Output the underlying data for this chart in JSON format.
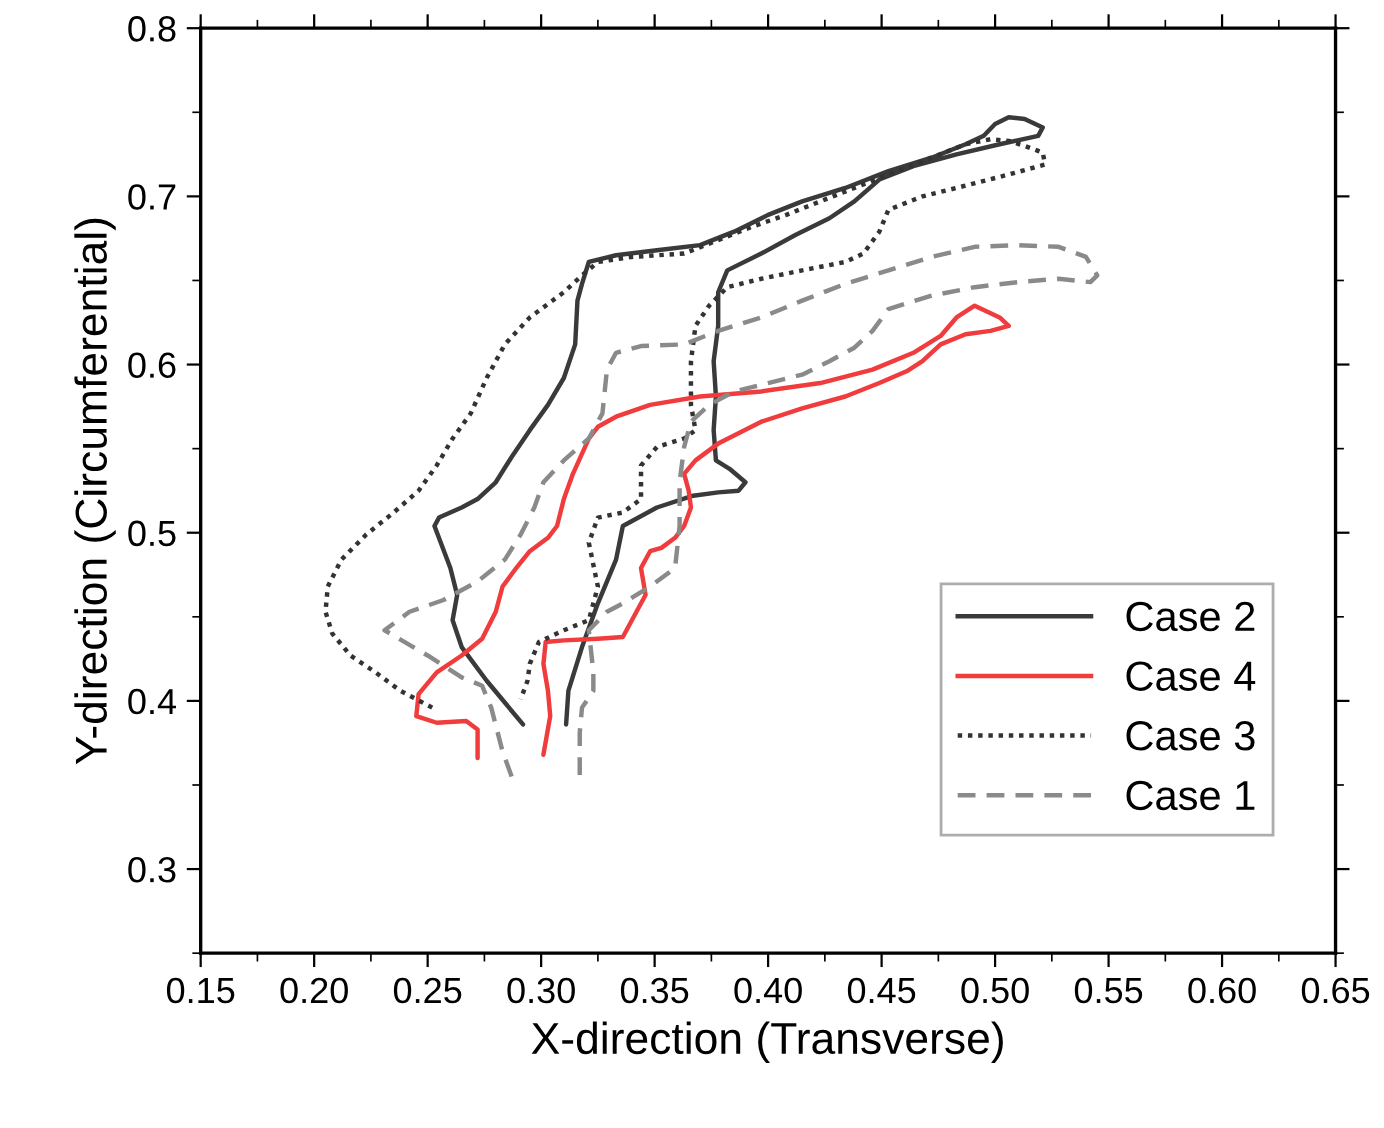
{
  "chart_data": {
    "type": "line",
    "xlabel": "X-direction (Transverse)",
    "ylabel": "Y-direction (Circumferential)",
    "xlim": [
      0.15,
      0.65
    ],
    "xticks": [
      {
        "value": 0.15,
        "label": "0.15"
      },
      {
        "value": 0.2,
        "label": "0.20"
      },
      {
        "value": 0.25,
        "label": "0.25"
      },
      {
        "value": 0.3,
        "label": "0.30"
      },
      {
        "value": 0.35,
        "label": "0.35"
      },
      {
        "value": 0.4,
        "label": "0.40"
      },
      {
        "value": 0.45,
        "label": "0.45"
      },
      {
        "value": 0.5,
        "label": "0.50"
      },
      {
        "value": 0.55,
        "label": "0.55"
      },
      {
        "value": 0.6,
        "label": "0.60"
      },
      {
        "value": 0.65,
        "label": "0.65"
      }
    ],
    "ylim": [
      0.25,
      0.8
    ],
    "yticks": [
      0.3,
      0.4,
      0.5,
      0.6,
      0.7,
      0.8
    ],
    "grid": false,
    "legend": "bottom right",
    "marker": "none",
    "series": [
      {
        "name": "Case 2",
        "color": "#3a3a3a",
        "line_style": "solid",
        "x": [
          0.292,
          0.276,
          0.265,
          0.261,
          0.263,
          0.26,
          0.253,
          0.255,
          0.265,
          0.272,
          0.28,
          0.287,
          0.295,
          0.303,
          0.31,
          0.315,
          0.316,
          0.318,
          0.321,
          0.333,
          0.351,
          0.37,
          0.385,
          0.4,
          0.415,
          0.434,
          0.453,
          0.472,
          0.487,
          0.495,
          0.5,
          0.506,
          0.513,
          0.521,
          0.519,
          0.502,
          0.483,
          0.464,
          0.449,
          0.438,
          0.427,
          0.412,
          0.397,
          0.382,
          0.378,
          0.378,
          0.376,
          0.377,
          0.376,
          0.377,
          0.383,
          0.39,
          0.387,
          0.378,
          0.367,
          0.351,
          0.336,
          0.333,
          0.325,
          0.318,
          0.312,
          0.311
        ],
        "values": [
          0.386,
          0.412,
          0.432,
          0.448,
          0.463,
          0.479,
          0.504,
          0.509,
          0.515,
          0.52,
          0.53,
          0.545,
          0.561,
          0.576,
          0.592,
          0.612,
          0.638,
          0.648,
          0.661,
          0.665,
          0.668,
          0.671,
          0.679,
          0.689,
          0.697,
          0.705,
          0.715,
          0.723,
          0.731,
          0.736,
          0.743,
          0.747,
          0.746,
          0.741,
          0.736,
          0.731,
          0.725,
          0.718,
          0.71,
          0.697,
          0.687,
          0.677,
          0.666,
          0.656,
          0.643,
          0.623,
          0.602,
          0.581,
          0.561,
          0.543,
          0.538,
          0.53,
          0.525,
          0.524,
          0.522,
          0.515,
          0.504,
          0.484,
          0.458,
          0.432,
          0.406,
          0.386
        ]
      },
      {
        "name": "Case 4",
        "color": "#f03c3c",
        "line_style": "solid",
        "x": [
          0.272,
          0.272,
          0.267,
          0.254,
          0.245,
          0.246,
          0.254,
          0.265,
          0.274,
          0.28,
          0.283,
          0.289,
          0.295,
          0.303,
          0.307,
          0.31,
          0.314,
          0.321,
          0.325,
          0.333,
          0.348,
          0.37,
          0.397,
          0.423,
          0.446,
          0.464,
          0.476,
          0.483,
          0.491,
          0.502,
          0.506,
          0.498,
          0.487,
          0.476,
          0.468,
          0.461,
          0.449,
          0.434,
          0.415,
          0.397,
          0.378,
          0.368,
          0.363,
          0.365,
          0.366,
          0.363,
          0.359,
          0.353,
          0.348,
          0.344,
          0.346,
          0.342,
          0.336,
          0.325,
          0.31,
          0.302,
          0.301,
          0.303,
          0.304,
          0.301
        ],
        "values": [
          0.366,
          0.383,
          0.388,
          0.387,
          0.391,
          0.404,
          0.417,
          0.427,
          0.437,
          0.453,
          0.468,
          0.479,
          0.489,
          0.497,
          0.504,
          0.52,
          0.535,
          0.556,
          0.563,
          0.569,
          0.576,
          0.581,
          0.584,
          0.589,
          0.597,
          0.607,
          0.617,
          0.628,
          0.635,
          0.628,
          0.623,
          0.62,
          0.618,
          0.612,
          0.602,
          0.596,
          0.589,
          0.581,
          0.574,
          0.566,
          0.553,
          0.543,
          0.535,
          0.525,
          0.515,
          0.504,
          0.497,
          0.491,
          0.489,
          0.479,
          0.463,
          0.453,
          0.438,
          0.437,
          0.436,
          0.435,
          0.422,
          0.406,
          0.391,
          0.368
        ]
      },
      {
        "name": "Case 3",
        "color": "#333333",
        "line_style": "dotted",
        "x": [
          0.252,
          0.238,
          0.227,
          0.216,
          0.208,
          0.205,
          0.206,
          0.212,
          0.223,
          0.235,
          0.246,
          0.254,
          0.261,
          0.269,
          0.276,
          0.284,
          0.295,
          0.31,
          0.318,
          0.325,
          0.34,
          0.363,
          0.378,
          0.393,
          0.408,
          0.423,
          0.438,
          0.453,
          0.472,
          0.487,
          0.498,
          0.506,
          0.513,
          0.521,
          0.522,
          0.506,
          0.483,
          0.468,
          0.453,
          0.449,
          0.442,
          0.434,
          0.415,
          0.397,
          0.382,
          0.374,
          0.368,
          0.366,
          0.366,
          0.368,
          0.363,
          0.351,
          0.344,
          0.344,
          0.336,
          0.325,
          0.321,
          0.325,
          0.321,
          0.31,
          0.299,
          0.295,
          0.294,
          0.291
        ],
        "values": [
          0.396,
          0.406,
          0.417,
          0.427,
          0.44,
          0.453,
          0.468,
          0.484,
          0.499,
          0.512,
          0.525,
          0.54,
          0.556,
          0.571,
          0.592,
          0.612,
          0.628,
          0.643,
          0.653,
          0.661,
          0.664,
          0.666,
          0.674,
          0.682,
          0.689,
          0.697,
          0.705,
          0.713,
          0.723,
          0.731,
          0.734,
          0.733,
          0.73,
          0.726,
          0.719,
          0.713,
          0.705,
          0.7,
          0.692,
          0.679,
          0.666,
          0.661,
          0.656,
          0.651,
          0.646,
          0.635,
          0.623,
          0.602,
          0.576,
          0.561,
          0.556,
          0.551,
          0.54,
          0.52,
          0.512,
          0.509,
          0.494,
          0.468,
          0.448,
          0.442,
          0.435,
          0.422,
          0.412,
          0.401
        ]
      },
      {
        "name": "Case 1",
        "color": "#8a8a8a",
        "line_style": "dashed",
        "x": [
          0.287,
          0.283,
          0.278,
          0.274,
          0.265,
          0.25,
          0.231,
          0.242,
          0.257,
          0.272,
          0.284,
          0.291,
          0.297,
          0.301,
          0.31,
          0.321,
          0.327,
          0.329,
          0.333,
          0.344,
          0.363,
          0.378,
          0.397,
          0.415,
          0.434,
          0.453,
          0.472,
          0.491,
          0.51,
          0.528,
          0.54,
          0.545,
          0.542,
          0.528,
          0.51,
          0.491,
          0.472,
          0.453,
          0.446,
          0.438,
          0.427,
          0.415,
          0.4,
          0.385,
          0.374,
          0.366,
          0.363,
          0.361,
          0.361,
          0.359,
          0.348,
          0.336,
          0.329,
          0.321,
          0.323,
          0.323,
          0.318,
          0.317,
          0.317
        ],
        "values": [
          0.355,
          0.37,
          0.396,
          0.409,
          0.414,
          0.427,
          0.442,
          0.453,
          0.46,
          0.471,
          0.484,
          0.499,
          0.515,
          0.53,
          0.543,
          0.556,
          0.571,
          0.597,
          0.607,
          0.611,
          0.612,
          0.62,
          0.628,
          0.638,
          0.648,
          0.656,
          0.664,
          0.67,
          0.671,
          0.67,
          0.664,
          0.653,
          0.649,
          0.651,
          0.649,
          0.646,
          0.641,
          0.633,
          0.62,
          0.61,
          0.602,
          0.594,
          0.589,
          0.584,
          0.576,
          0.566,
          0.551,
          0.53,
          0.504,
          0.479,
          0.468,
          0.458,
          0.453,
          0.442,
          0.417,
          0.406,
          0.396,
          0.381,
          0.355
        ]
      }
    ]
  }
}
